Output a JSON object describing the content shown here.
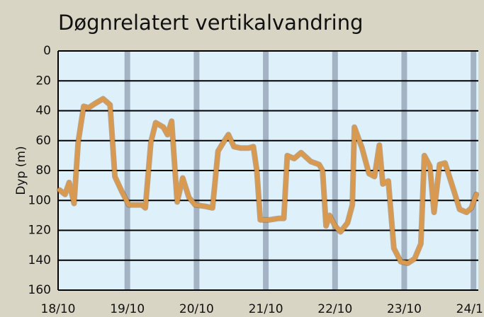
{
  "chart_data": {
    "type": "line",
    "title": "Døgnrelatert vertikalvandring",
    "y_label": "Dyp (m)",
    "x": [
      0.02,
      0.1,
      0.16,
      0.23,
      0.29,
      0.37,
      0.44,
      0.54,
      0.65,
      0.75,
      0.82,
      0.92,
      1.02,
      1.11,
      1.21,
      1.26,
      1.34,
      1.41,
      1.52,
      1.58,
      1.64,
      1.72,
      1.8,
      1.89,
      1.98,
      2.13,
      2.23,
      2.31,
      2.39,
      2.46,
      2.54,
      2.64,
      2.75,
      2.82,
      2.87,
      2.92,
      3.05,
      3.19,
      3.26,
      3.31,
      3.41,
      3.51,
      3.65,
      3.77,
      3.82,
      3.87,
      3.92,
      4.0,
      4.08,
      4.18,
      4.25,
      4.28,
      4.39,
      4.49,
      4.57,
      4.64,
      4.69,
      4.77,
      4.85,
      4.95,
      5.05,
      5.15,
      5.24,
      5.29,
      5.37,
      5.43,
      5.51,
      5.59,
      5.72,
      5.8,
      5.9,
      5.97,
      6.04
    ],
    "values": [
      93,
      96,
      88,
      102,
      61,
      37,
      38,
      35,
      32,
      36,
      84,
      94,
      103,
      103,
      103,
      105,
      61,
      48,
      51,
      56,
      47,
      101,
      85,
      98,
      103,
      104,
      105,
      67,
      61,
      56,
      64,
      65,
      65,
      64,
      80,
      113,
      113,
      112,
      112,
      70,
      72,
      68,
      74,
      76,
      80,
      117,
      110,
      117,
      121,
      115,
      103,
      51,
      65,
      82,
      84,
      63,
      89,
      87,
      132,
      141,
      142,
      139,
      129,
      70,
      77,
      108,
      76,
      75,
      94,
      106,
      108,
      105,
      96
    ],
    "color": "#d9994f",
    "xlim": [
      0,
      6.07
    ],
    "xticks": [
      {
        "value": 0,
        "label": "18/10"
      },
      {
        "value": 1,
        "label": "19/10"
      },
      {
        "value": 2,
        "label": "20/10"
      },
      {
        "value": 3,
        "label": "21/10"
      },
      {
        "value": 4,
        "label": "22/10"
      },
      {
        "value": 5,
        "label": "23/10"
      },
      {
        "value": 6,
        "label": "24/10"
      }
    ],
    "ylim": [
      0,
      160
    ],
    "y_inverted": true,
    "yticks": [
      0,
      20,
      40,
      60,
      80,
      100,
      120,
      140,
      160
    ],
    "grid": true,
    "band_color": "#a3b3c3"
  }
}
